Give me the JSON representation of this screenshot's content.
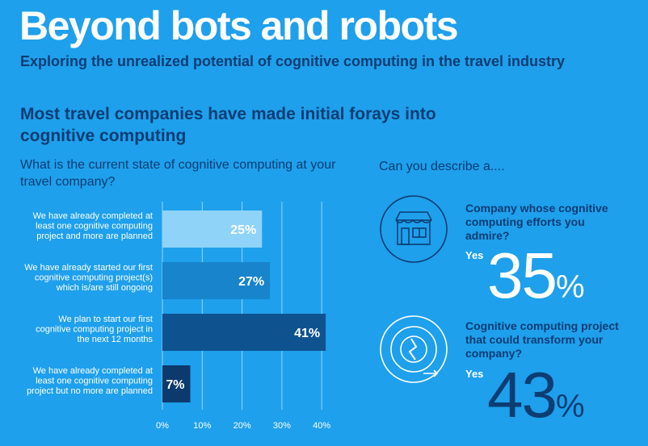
{
  "header": {
    "title": "Beyond bots and robots",
    "subtitle": "Exploring the unrealized potential of cognitive computing in the travel industry"
  },
  "headline": "Most travel companies have made initial forays into cognitive computing",
  "chart_data": {
    "type": "bar",
    "orientation": "horizontal",
    "title": "What is the current state of cognitive computing at your travel company?",
    "categories": [
      "We have already completed at least one cognitive computing project and more are planned",
      "We have already started our first cognitive computing project(s) which is/are still ongoing",
      "We plan to start our first cognitive computing project in the next 12 months",
      "We have already completed at least one cognitive computing project but no more are planned"
    ],
    "category_lines": [
      [
        "We have already completed at",
        "least one cognitive computing",
        "project and more are planned"
      ],
      [
        "We have already started our first",
        "cognitive computing project(s)",
        "which is/are still ongoing"
      ],
      [
        "We plan to start our first",
        "cognitive computing project in",
        "the next 12 months"
      ],
      [
        "We have already completed at",
        "least one cognitive computing",
        "project but no more are planned"
      ]
    ],
    "values": [
      25,
      27,
      41,
      7
    ],
    "value_labels": [
      "25%",
      "27%",
      "41%",
      "7%"
    ],
    "bar_colors": [
      "#8fd3f8",
      "#1784cc",
      "#0f5290",
      "#0c3a6e"
    ],
    "xlim": [
      0,
      40
    ],
    "xticks": [
      0,
      10,
      20,
      30,
      40
    ],
    "xtick_labels": [
      "0%",
      "10%",
      "20%",
      "30%",
      "40%"
    ],
    "grid": true
  },
  "right_panel": {
    "question": "Can you describe a....",
    "stats": [
      {
        "icon": "storefront-icon",
        "question": "Company whose cognitive computing efforts you admire?",
        "answer": "Yes",
        "value": "35",
        "unit": "%"
      },
      {
        "icon": "circular-arrow-icon",
        "question": "Cognitive computing project that could transform your company?",
        "answer": "Yes",
        "value": "43",
        "unit": "%"
      }
    ]
  },
  "colors": {
    "background": "#1ea0ec",
    "dark_text": "#0c3d73",
    "big_number": "#0c3d73"
  }
}
